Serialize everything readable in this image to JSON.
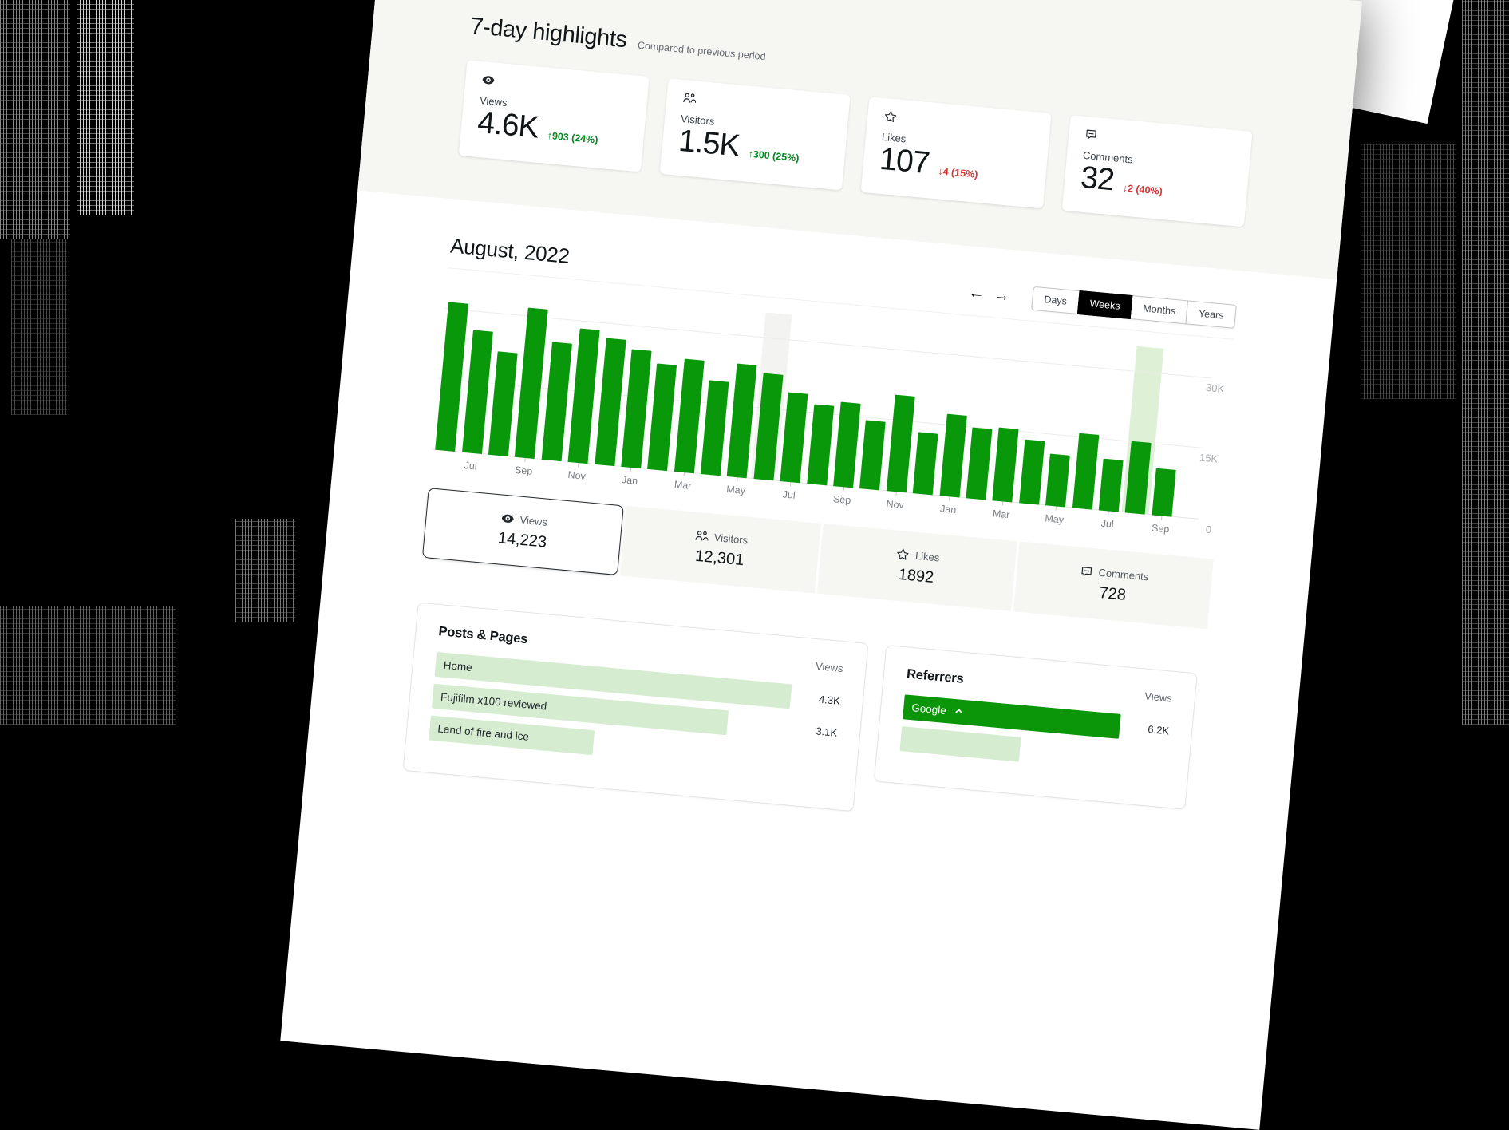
{
  "page": {
    "highlights": {
      "title": "7-day highlights",
      "subtitle": "Compared to previous period",
      "cards": [
        {
          "icon": "eye",
          "label": "Views",
          "value": "4.6K",
          "delta": "↑903 (24%)",
          "trend": "up"
        },
        {
          "icon": "people",
          "label": "Visitors",
          "value": "1.5K",
          "delta": "↑300 (25%)",
          "trend": "up"
        },
        {
          "icon": "star",
          "label": "Likes",
          "value": "107",
          "delta": "↓4 (15%)",
          "trend": "down"
        },
        {
          "icon": "comment",
          "label": "Comments",
          "value": "32",
          "delta": "↓2 (40%)",
          "trend": "down"
        }
      ]
    },
    "period": {
      "heading": "August, 2022",
      "nav_prev": "←",
      "nav_next": "→",
      "range_tabs": [
        {
          "label": "Days",
          "active": false
        },
        {
          "label": "Weeks",
          "active": true
        },
        {
          "label": "Months",
          "active": false
        },
        {
          "label": "Years",
          "active": false
        }
      ]
    },
    "summary_tabs": [
      {
        "icon": "eye",
        "label": "Views",
        "value": "14,223",
        "selected": true
      },
      {
        "icon": "people",
        "label": "Visitors",
        "value": "12,301",
        "selected": false
      },
      {
        "icon": "star",
        "label": "Likes",
        "value": "1892",
        "selected": false
      },
      {
        "icon": "comment",
        "label": "Comments",
        "value": "728",
        "selected": false
      }
    ],
    "posts_pages": {
      "title": "Posts & Pages",
      "views_header": "Views",
      "rows": [
        {
          "label": "Home",
          "value": "4.3K",
          "bar": 1.0
        },
        {
          "label": "Fujifilm x100 reviewed",
          "value": "3.1K",
          "bar": 0.83
        },
        {
          "label": "Land of fire and ice",
          "value": "",
          "bar": 0.46
        }
      ]
    },
    "referrers": {
      "title": "Referrers",
      "views_header": "Views",
      "rows": [
        {
          "label": "Google",
          "value": "6.2K",
          "bar": 1.0,
          "style": "solid",
          "expanded": true
        },
        {
          "label": "",
          "value": "",
          "bar": 0.55,
          "style": "light",
          "expanded": false
        }
      ]
    }
  },
  "chart_data": {
    "type": "bar",
    "series_name": "Views",
    "values_thousands": [
      31.5,
      26,
      22,
      31.8,
      25,
      28.5,
      27,
      25,
      22.5,
      24,
      20,
      24,
      22.5,
      19,
      17,
      18,
      14.5,
      20.5,
      13,
      17.5,
      15,
      15.5,
      13.5,
      11,
      16,
      11,
      15.2,
      10
    ],
    "x_tick_labels": [
      "Jul",
      "Sep",
      "Nov",
      "Jan",
      "Mar",
      "May",
      "Jul",
      "Sep",
      "Nov",
      "Jan",
      "Mar",
      "May",
      "Jul",
      "Sep"
    ],
    "y_tick_labels": [
      "30K",
      "15K",
      "0"
    ],
    "y_tick_values_thousands": [
      30,
      15,
      0
    ],
    "gridlines_thousands": [
      15,
      30
    ],
    "ylim_thousands": [
      0,
      33
    ],
    "highlighted_bar_green_index": 26,
    "highlighted_bar_gray_index": 12,
    "legend": "none",
    "grid": "horizontal"
  },
  "colors": {
    "bar_green": "#089809",
    "row_light_green": "#d6ecd1",
    "solid_row_green": "#0a9608",
    "highlight_band_green": "#def0d6",
    "highlight_band_gray": "#f3f4f1",
    "trend_up_green": "#008a20",
    "trend_down_red": "#d63638",
    "active_tab_black": "#000000",
    "cream_section": "#f6f7f3"
  }
}
